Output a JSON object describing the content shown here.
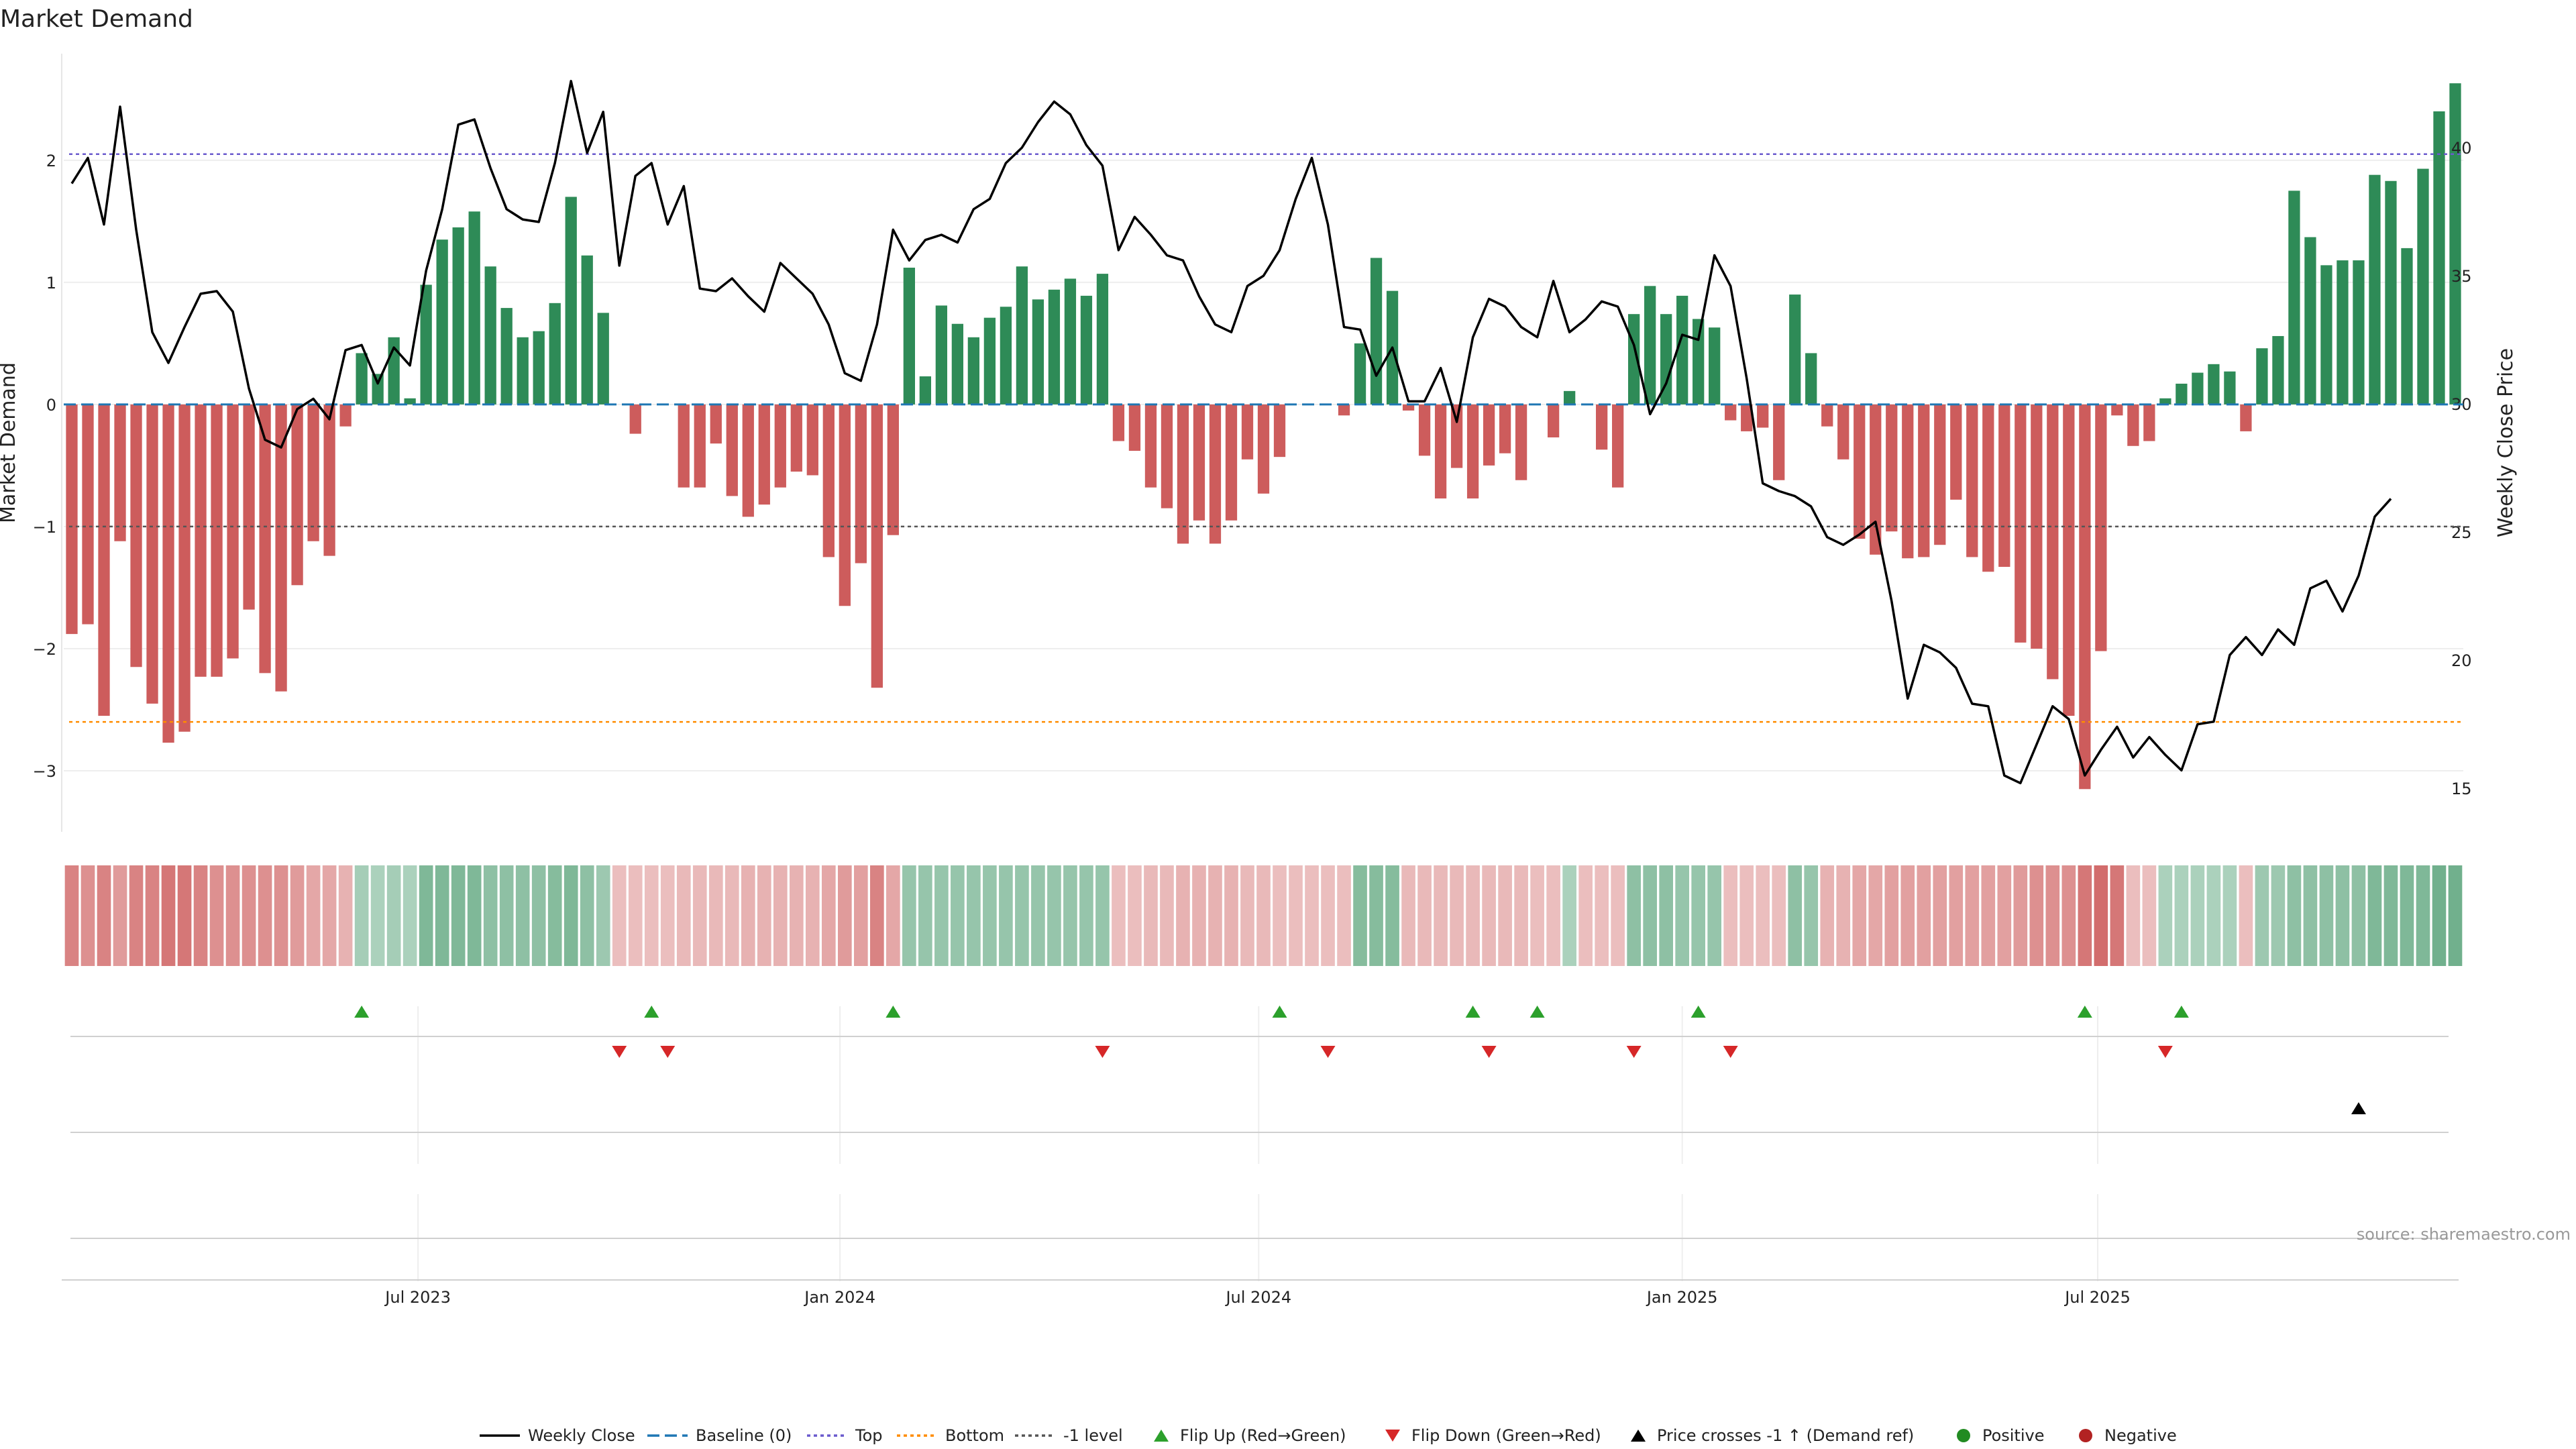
{
  "chart_data": {
    "type": "bar",
    "title": "Market Demand",
    "ylabel": "Market Demand",
    "ylabel_right": "Weekly Close Price",
    "ylim": [
      -3.5,
      2.9
    ],
    "ylim_right": [
      13.3,
      43.8
    ],
    "yticks": [
      -3,
      -2,
      -1,
      0,
      1,
      2
    ],
    "yticks_right": [
      15,
      20,
      25,
      30,
      35,
      40
    ],
    "reference_lines": {
      "top": 2.05,
      "bottom": -2.6,
      "minus_one": -1.0,
      "baseline": 0
    },
    "demand": [
      -1.88,
      -1.8,
      -2.55,
      -1.12,
      -2.15,
      -2.45,
      -2.77,
      -2.68,
      -2.23,
      -2.23,
      -2.08,
      -1.68,
      -2.2,
      -2.35,
      -1.48,
      -1.12,
      -1.24,
      -0.18,
      0.42,
      0.25,
      0.55,
      0.05,
      0.98,
      1.35,
      1.45,
      1.58,
      1.13,
      0.79,
      0.55,
      0.6,
      0.83,
      1.7,
      1.22,
      0.75,
      0,
      -0.24,
      0,
      0,
      -0.68,
      -0.68,
      -0.32,
      -0.75,
      -0.92,
      -0.82,
      -0.68,
      -0.55,
      -0.58,
      -1.25,
      -1.65,
      -1.3,
      -2.32,
      -1.07,
      1.12,
      0.23,
      0.81,
      0.66,
      0.55,
      0.71,
      0.8,
      1.13,
      0.86,
      0.94,
      1.03,
      0.89,
      1.07,
      -0.3,
      -0.38,
      -0.68,
      -0.85,
      -1.14,
      -0.95,
      -1.14,
      -0.95,
      -0.45,
      -0.73,
      -0.43,
      0,
      0,
      0,
      -0.09,
      0.5,
      1.2,
      0.93,
      -0.05,
      -0.42,
      -0.77,
      -0.52,
      -0.77,
      -0.5,
      -0.4,
      -0.62,
      0,
      -0.27,
      0.11,
      0,
      -0.37,
      -0.68,
      0.74,
      0.97,
      0.74,
      0.89,
      0.7,
      0.63,
      -0.13,
      -0.22,
      -0.19,
      -0.62,
      0.9,
      0.42,
      -0.18,
      -0.45,
      -1.1,
      -1.23,
      -1.04,
      -1.26,
      -1.25,
      -1.15,
      -0.78,
      -1.25,
      -1.37,
      -1.33,
      -1.95,
      -2.0,
      -2.25,
      -2.55,
      -3.15,
      -2.02,
      -0.09,
      -0.34,
      -0.3,
      0.05,
      0.17,
      0.26,
      0.33,
      0.27,
      -0.22,
      0.46,
      0.56,
      1.75,
      1.37,
      1.14,
      1.18,
      1.18,
      1.88,
      1.83,
      1.28,
      1.93,
      2.4,
      2.63
    ],
    "close": [
      38.6,
      39.6,
      37.0,
      41.6,
      36.8,
      32.8,
      31.6,
      33.0,
      34.3,
      34.4,
      33.6,
      30.6,
      28.6,
      28.3,
      29.8,
      30.2,
      29.4,
      32.1,
      32.3,
      30.8,
      32.2,
      31.5,
      35.2,
      37.6,
      40.9,
      41.1,
      39.2,
      37.6,
      37.2,
      37.1,
      39.4,
      42.6,
      39.8,
      41.4,
      35.4,
      38.9,
      39.4,
      37.0,
      38.5,
      34.5,
      34.4,
      34.9,
      34.2,
      33.6,
      35.5,
      34.9,
      34.3,
      33.1,
      31.2,
      30.9,
      33.1,
      36.8,
      35.6,
      36.4,
      36.6,
      36.3,
      37.6,
      38.0,
      39.4,
      40.0,
      41.0,
      41.8,
      41.3,
      40.1,
      39.3,
      36.0,
      37.3,
      36.6,
      35.8,
      35.6,
      34.2,
      33.1,
      32.8,
      34.6,
      35.0,
      36.0,
      38.0,
      39.6,
      37.0,
      33.0,
      32.9,
      31.1,
      32.2,
      30.1,
      30.1,
      31.4,
      29.3,
      32.6,
      34.1,
      33.8,
      33.0,
      32.6,
      34.8,
      32.8,
      33.3,
      34.0,
      33.8,
      32.3,
      29.6,
      30.8,
      32.7,
      32.5,
      35.8,
      34.6,
      31.0,
      26.9,
      26.6,
      26.4,
      26.0,
      24.8,
      24.5,
      24.9,
      25.4,
      22.3,
      18.5,
      20.6,
      20.3,
      19.7,
      18.3,
      18.2,
      15.5,
      15.2,
      16.7,
      18.2,
      17.7,
      15.5,
      16.5,
      17.4,
      16.2,
      17.0,
      16.3,
      15.7,
      17.5,
      17.6,
      20.2,
      20.9,
      20.2,
      21.2,
      20.6,
      22.8,
      23.1,
      21.9,
      23.3,
      25.6,
      26.3
    ],
    "color_strip_values": [
      0.8,
      0.7,
      0.8,
      0.6,
      0.8,
      0.8,
      0.9,
      0.9,
      0.8,
      0.7,
      0.7,
      0.7,
      0.7,
      0.7,
      0.6,
      0.5,
      0.5,
      0.4,
      0.35,
      0.3,
      0.35,
      0.3,
      0.6,
      0.6,
      0.6,
      0.6,
      0.5,
      0.5,
      0.5,
      0.5,
      0.55,
      0.6,
      0.5,
      0.4,
      0.3,
      0.3,
      0.3,
      0.3,
      0.35,
      0.35,
      0.35,
      0.35,
      0.4,
      0.4,
      0.4,
      0.4,
      0.4,
      0.5,
      0.6,
      0.55,
      0.8,
      0.5,
      0.45,
      0.45,
      0.45,
      0.45,
      0.45,
      0.45,
      0.45,
      0.45,
      0.45,
      0.45,
      0.45,
      0.45,
      0.45,
      0.3,
      0.3,
      0.35,
      0.35,
      0.4,
      0.4,
      0.4,
      0.4,
      0.35,
      0.35,
      0.3,
      0.3,
      0.3,
      0.3,
      0.3,
      0.55,
      0.55,
      0.55,
      0.35,
      0.35,
      0.35,
      0.35,
      0.35,
      0.35,
      0.35,
      0.35,
      0.3,
      0.3,
      0.3,
      0.3,
      0.3,
      0.3,
      0.5,
      0.5,
      0.5,
      0.45,
      0.45,
      0.45,
      0.3,
      0.3,
      0.3,
      0.3,
      0.5,
      0.45,
      0.4,
      0.4,
      0.5,
      0.5,
      0.55,
      0.55,
      0.55,
      0.55,
      0.55,
      0.55,
      0.55,
      0.55,
      0.6,
      0.7,
      0.7,
      0.7,
      0.9,
      1.0,
      0.9,
      0.3,
      0.3,
      0.3,
      0.3,
      0.3,
      0.3,
      0.3,
      0.3,
      0.4,
      0.4,
      0.5,
      0.5,
      0.5,
      0.5,
      0.5,
      0.6,
      0.6,
      0.6,
      0.6,
      0.7,
      0.7
    ],
    "flip_up_weeks": [
      18,
      36,
      51,
      75,
      87,
      91,
      101,
      125,
      131
    ],
    "flip_down_weeks": [
      34,
      37,
      64,
      78,
      88,
      97,
      103,
      130
    ],
    "price_cross_weeks": [
      142
    ],
    "xticks": [
      {
        "label": "Jul 2023",
        "week": 21.5
      },
      {
        "label": "Jan 2024",
        "week": 47.7
      },
      {
        "label": "Jul 2024",
        "week": 73.7
      },
      {
        "label": "Jan 2025",
        "week": 100
      },
      {
        "label": "Jul 2025",
        "week": 125.8
      }
    ],
    "legend": [
      "Weekly Close",
      "Baseline (0)",
      "Top",
      "Bottom",
      "-1 level",
      "Flip Up (Red→Green)",
      "Flip Down (Green→Red)",
      "Price crosses -1 ↑ (Demand ref)",
      "Positive",
      "Negative"
    ],
    "legend_position": "bottom-center"
  },
  "source_note": "source: sharemaestro.com",
  "colors": {
    "positive": "#2e8b57",
    "negative": "#cd5c5c",
    "flip_up": "#2ca02c",
    "flip_down": "#d62728",
    "cross": "#000000",
    "top_line": "#6a5acd",
    "bottom_line": "#ff8c00",
    "minus_one_line": "#555555",
    "baseline": "#1f77b4",
    "legend_positive_dot": "#228b22",
    "legend_negative_dot": "#b22222"
  }
}
